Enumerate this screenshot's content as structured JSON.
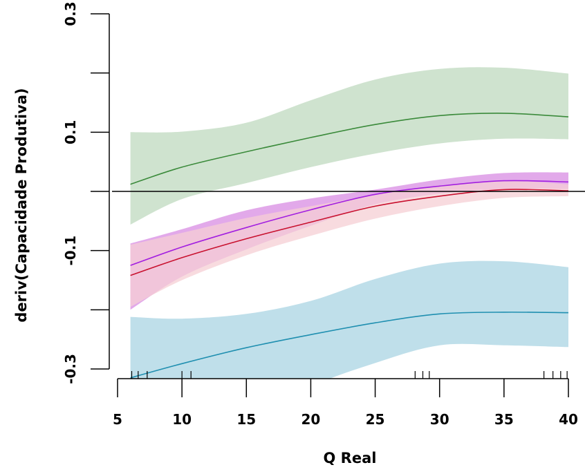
{
  "chart_data": {
    "type": "line",
    "title": "",
    "xlabel": "Q Real",
    "ylabel": "deriv(Capacidade Produtiva)",
    "xlim": [
      5,
      40
    ],
    "ylim": [
      -0.3,
      0.3
    ],
    "x_ticks": [
      "5",
      "10",
      "15",
      "20",
      "25",
      "30",
      "35",
      "40"
    ],
    "y_ticks": [
      -0.3,
      -0.2,
      -0.1,
      0.0,
      0.1,
      0.2,
      0.3
    ],
    "y_tick_labels": [
      "-0.3",
      "",
      "-0.1",
      "",
      "0.1",
      "",
      "0.3"
    ],
    "reference_line_y": 0,
    "x": [
      6,
      10,
      15,
      20,
      25,
      30,
      35,
      40
    ],
    "series": [
      {
        "color": "#3a8a3a",
        "band_color": "#cfe3cf",
        "values": [
          0.012,
          0.041,
          0.067,
          0.091,
          0.113,
          0.128,
          0.132,
          0.126
        ],
        "lower": [
          -0.056,
          -0.013,
          0.014,
          0.041,
          0.064,
          0.081,
          0.089,
          0.088
        ],
        "upper": [
          0.1,
          0.101,
          0.116,
          0.154,
          0.189,
          0.207,
          0.209,
          0.199
        ]
      },
      {
        "color": "#a21ee0",
        "band_color": "#dd9ae6",
        "values": [
          -0.125,
          -0.094,
          -0.061,
          -0.031,
          -0.005,
          0.009,
          0.018,
          0.016
        ],
        "lower": [
          -0.2,
          -0.144,
          -0.098,
          -0.058,
          -0.022,
          -0.004,
          0.004,
          0.004
        ],
        "upper": [
          -0.088,
          -0.064,
          -0.032,
          -0.012,
          0.003,
          0.02,
          0.031,
          0.032
        ]
      },
      {
        "color": "#c8102e",
        "band_color": "#f6cfd4",
        "values": [
          -0.142,
          -0.112,
          -0.08,
          -0.052,
          -0.025,
          -0.008,
          0.003,
          0.001
        ],
        "lower": [
          -0.195,
          -0.15,
          -0.108,
          -0.075,
          -0.046,
          -0.025,
          -0.011,
          -0.008
        ],
        "upper": [
          -0.09,
          -0.07,
          -0.045,
          -0.025,
          -0.006,
          0.01,
          0.018,
          0.012
        ]
      },
      {
        "color": "#1f8fb0",
        "band_color": "#bfdfea",
        "values": [
          -0.315,
          -0.291,
          -0.264,
          -0.242,
          -0.222,
          -0.207,
          -0.204,
          -0.205
        ],
        "lower": [
          -0.45,
          -0.43,
          -0.39,
          -0.33,
          -0.29,
          -0.26,
          -0.26,
          -0.263
        ],
        "upper": [
          -0.212,
          -0.215,
          -0.207,
          -0.185,
          -0.148,
          -0.122,
          -0.118,
          -0.128
        ]
      }
    ],
    "rug_x": [
      6.1,
      6.6,
      7.3,
      10.0,
      10.7,
      28.1,
      28.7,
      29.2,
      38.1,
      38.8,
      39.4,
      39.9
    ]
  }
}
